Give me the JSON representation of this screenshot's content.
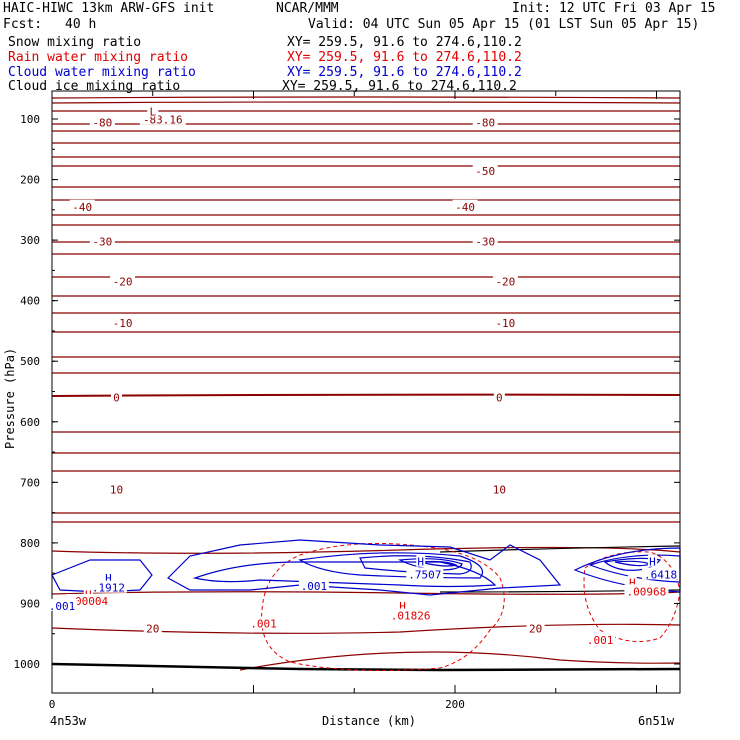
{
  "header": {
    "model": "HAIC-HIWC 13km ARW-GFS init",
    "org": "NCAR/MMM",
    "init": "Init: 12 UTC Fri 03 Apr 15",
    "fcst_label": "Fcst:",
    "fcst_value": "40 h",
    "valid": "Valid: 04 UTC Sun 05 Apr 15 (01 LST Sun 05 Apr 15)"
  },
  "fields": [
    {
      "name": "Snow mixing ratio",
      "xy": "XY= 259.5, 91.6 to 274.6,110.2",
      "color": "#000000"
    },
    {
      "name": "Rain water mixing ratio",
      "xy": "XY= 259.5, 91.6 to 274.6,110.2",
      "color": "#e00000"
    },
    {
      "name": "Cloud water mixing ratio",
      "xy": "XY= 259.5, 91.6 to 274.6,110.2",
      "color": "#0000cc"
    },
    {
      "name": "Cloud ice mixing ratio",
      "xy": "XY= 259.5, 91.6 to 274.6,110.2",
      "color": "#000000"
    }
  ],
  "chart_data": {
    "type": "contour cross-section",
    "ylabel": "Pressure (hPa)",
    "xlabel": "Distance (km)",
    "y_ticks": [
      100,
      200,
      300,
      400,
      500,
      600,
      700,
      800,
      900,
      1000
    ],
    "x_ticks": [
      0,
      200
    ],
    "x_endpoints": [
      "4n53w",
      "6n51w"
    ],
    "temperature_contours_color": "#8b0000",
    "temperature_labels": [
      {
        "text": "-80",
        "x": 25,
        "p": 106
      },
      {
        "text": "-80",
        "x": 215,
        "p": 106
      },
      {
        "text": "-83.16",
        "x": 55,
        "p": 101
      },
      {
        "text": "L",
        "x": 50,
        "p": 88
      },
      {
        "text": "-50",
        "x": 215,
        "p": 186
      },
      {
        "text": "-40",
        "x": 15,
        "p": 245
      },
      {
        "text": "-40",
        "x": 205,
        "p": 245
      },
      {
        "text": "-30",
        "x": 25,
        "p": 302
      },
      {
        "text": "-30",
        "x": 215,
        "p": 302
      },
      {
        "text": "-20",
        "x": 35,
        "p": 368
      },
      {
        "text": "-20",
        "x": 225,
        "p": 368
      },
      {
        "text": "-10",
        "x": 35,
        "p": 437
      },
      {
        "text": "-10",
        "x": 225,
        "p": 437
      },
      {
        "text": "0",
        "x": 32,
        "p": 560
      },
      {
        "text": "0",
        "x": 222,
        "p": 560
      },
      {
        "text": "10",
        "x": 32,
        "p": 712
      },
      {
        "text": "10",
        "x": 222,
        "p": 712
      },
      {
        "text": "20",
        "x": 50,
        "p": 941
      },
      {
        "text": "20",
        "x": 240,
        "p": 941
      }
    ],
    "extrema_labels": [
      {
        "text": "H",
        "x": 28,
        "p": 858,
        "color": "#0000cc"
      },
      {
        "text": ".1912",
        "x": 28,
        "p": 874,
        "color": "#0000cc"
      },
      {
        "text": "H",
        "x": 18,
        "p": 885,
        "color": "#e00000"
      },
      {
        "text": ".00004",
        "x": 18,
        "p": 896,
        "color": "#e00000"
      },
      {
        "text": ".001",
        "x": 5,
        "p": 904,
        "color": "#0000cc"
      },
      {
        "text": "H",
        "x": 183,
        "p": 831,
        "color": "#0000cc"
      },
      {
        "text": ".7507",
        "x": 185,
        "p": 852,
        "color": "#0000cc"
      },
      {
        "text": ".001",
        "x": 130,
        "p": 871,
        "color": "#0000cc"
      },
      {
        "text": "H",
        "x": 174,
        "p": 904,
        "color": "#e00000"
      },
      {
        "text": ".01826",
        "x": 178,
        "p": 920,
        "color": "#e00000"
      },
      {
        "text": ".001",
        "x": 105,
        "p": 933,
        "color": "#e00000"
      },
      {
        "text": "H",
        "x": 298,
        "p": 831,
        "color": "#0000cc"
      },
      {
        "text": ".6418",
        "x": 302,
        "p": 852,
        "color": "#0000cc"
      },
      {
        "text": "H",
        "x": 288,
        "p": 865,
        "color": "#e00000"
      },
      {
        "text": ".00968",
        "x": 295,
        "p": 880,
        "color": "#e00000"
      },
      {
        "text": ".001",
        "x": 272,
        "p": 960,
        "color": "#e00000"
      }
    ]
  }
}
